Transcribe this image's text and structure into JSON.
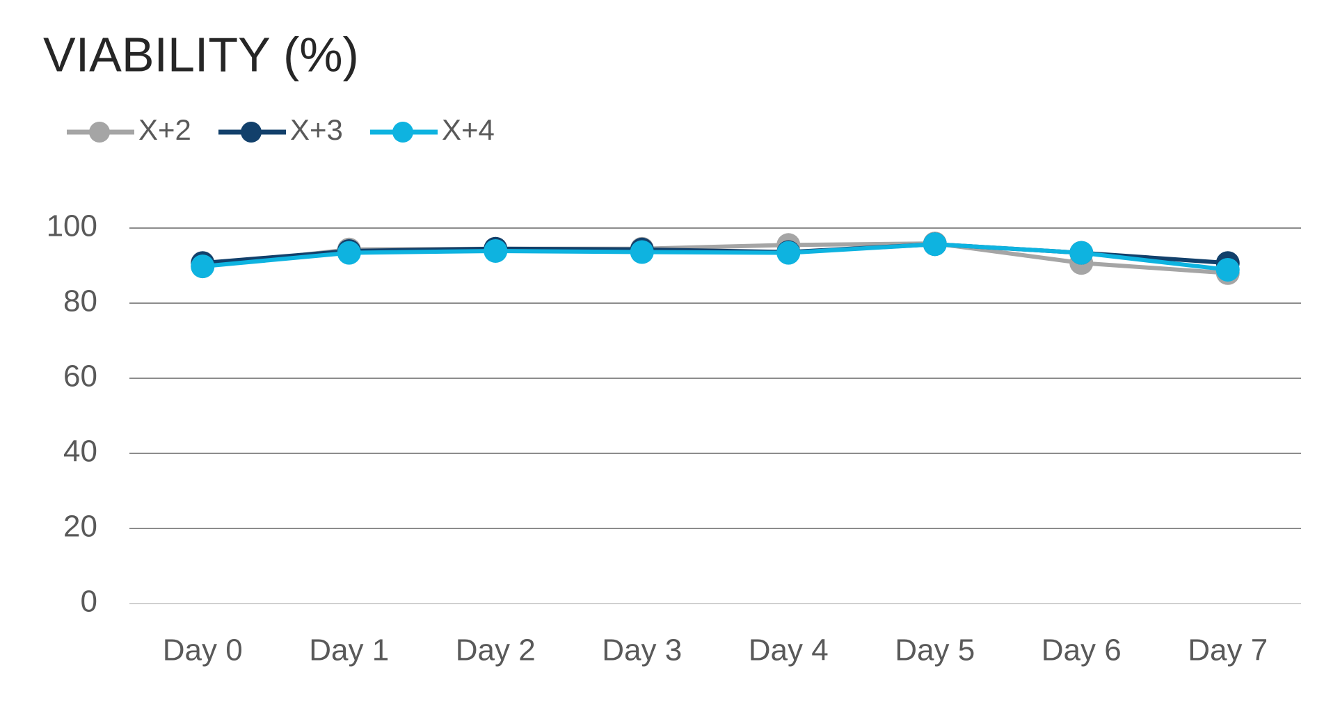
{
  "chart_data": {
    "type": "line",
    "title": "VIABILITY (%)",
    "categories": [
      "Day 0",
      "Day 1",
      "Day 2",
      "Day 3",
      "Day 4",
      "Day 5",
      "Day 6",
      "Day 7"
    ],
    "series": [
      {
        "name": "X+2",
        "color": "#a5a5a5",
        "values": [
          89.8,
          94.3,
          94.5,
          94.5,
          95.5,
          95.9,
          90.7,
          88.0
        ]
      },
      {
        "name": "X+3",
        "color": "#12406b",
        "values": [
          90.7,
          93.9,
          94.5,
          94.3,
          93.6,
          95.7,
          93.4,
          90.7
        ]
      },
      {
        "name": "X+4",
        "color": "#0eb3e0",
        "values": [
          89.8,
          93.4,
          93.9,
          93.6,
          93.4,
          95.7,
          93.4,
          88.9
        ]
      }
    ],
    "ylim": [
      0,
      100
    ],
    "yticks": [
      0,
      20,
      40,
      60,
      80,
      100
    ],
    "grid": true,
    "legend": "top-left"
  }
}
